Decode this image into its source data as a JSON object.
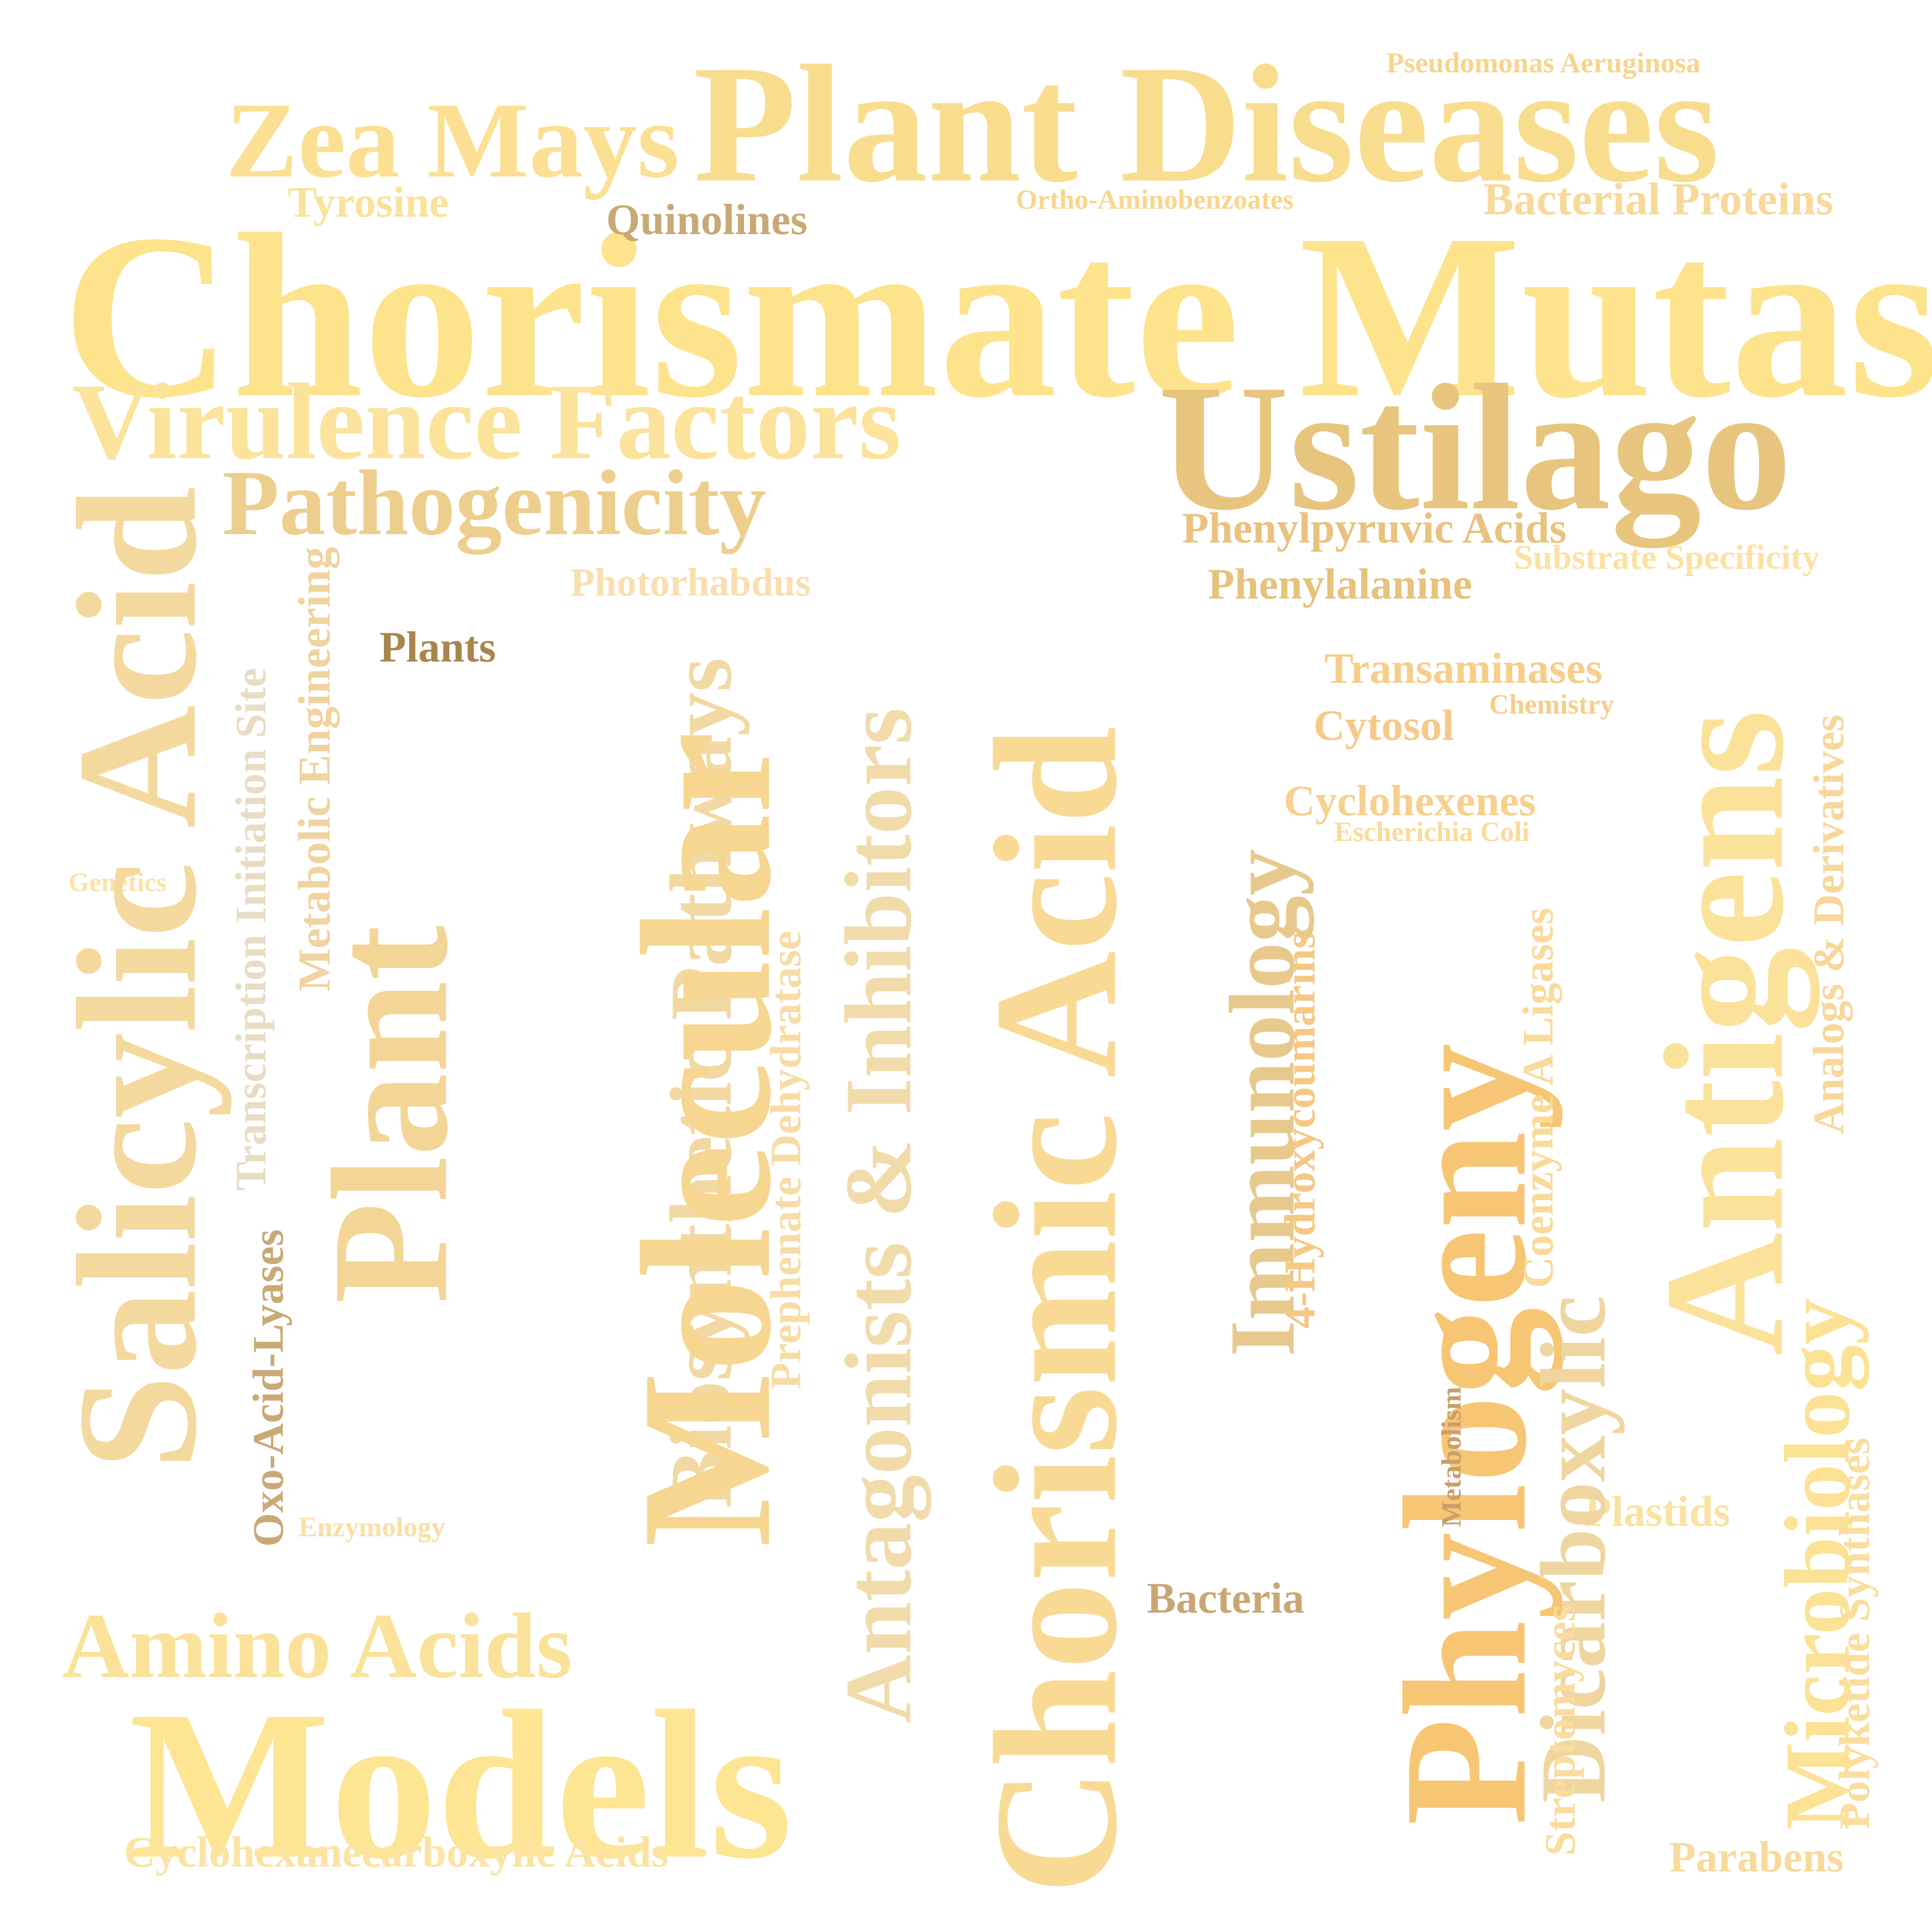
{
  "words": [
    {
      "id": "chorismate-mutase",
      "text": "Chorismate Mutase",
      "color": "#FDE38C"
    },
    {
      "id": "plant-diseases",
      "text": "Plant Diseases",
      "color": "#F9DD8E"
    },
    {
      "id": "zea-mays",
      "text": "Zea Mays",
      "color": "#FBE094"
    },
    {
      "id": "pseudomonas-aeruginosa",
      "text": "Pseudomonas Aeruginosa",
      "color": "#F6D58C"
    },
    {
      "id": "tyrosine",
      "text": "Tyrosine",
      "color": "#FBE29A"
    },
    {
      "id": "quinolines",
      "text": "Quinolines",
      "color": "#C8A975"
    },
    {
      "id": "ortho-aminobenzoates",
      "text": "Ortho-Aminobenzoates",
      "color": "#F7D68E"
    },
    {
      "id": "bacterial-proteins",
      "text": "Bacterial Proteins",
      "color": "#F7D99A"
    },
    {
      "id": "virulence-factors",
      "text": "Virulence Factors",
      "color": "#FBE39C"
    },
    {
      "id": "ustilago",
      "text": "Ustilago",
      "color": "#E8C57E"
    },
    {
      "id": "pathogenicity",
      "text": "Pathogenicity",
      "color": "#EDCE8D"
    },
    {
      "id": "phenylpyruvic-acids",
      "text": "Phenylpyruvic Acids",
      "color": "#E8C27E"
    },
    {
      "id": "substrate-specificity",
      "text": "Substrate Specificity",
      "color": "#FBE2A2"
    },
    {
      "id": "photorhabdus",
      "text": "Photorhabdus",
      "color": "#F9DFB0"
    },
    {
      "id": "phenylalanine",
      "text": "Phenylalanine",
      "color": "#E6C27C"
    },
    {
      "id": "plants",
      "text": "Plants",
      "color": "#A9854D"
    },
    {
      "id": "transaminases",
      "text": "Transaminases",
      "color": "#F6CE8A"
    },
    {
      "id": "chemistry",
      "text": "Chemistry",
      "color": "#F6CD8C"
    },
    {
      "id": "cytosol",
      "text": "Cytosol",
      "color": "#F6C98A"
    },
    {
      "id": "cyclohexenes",
      "text": "Cyclohexenes",
      "color": "#F7D08E"
    },
    {
      "id": "escherichia-coli",
      "text": "Escherichia Coli",
      "color": "#F9DB9C"
    },
    {
      "id": "genetics",
      "text": "Genetics",
      "color": "#FBE3A6"
    },
    {
      "id": "salicylic-acid",
      "text": "Salicylic Acid",
      "color": "#F4D99E"
    },
    {
      "id": "metabolic-engineering",
      "text": "Metabolic Engineering",
      "color": "#F0D3A0"
    },
    {
      "id": "transcription-initiation-site",
      "text": "Transcription Initiation Site",
      "color": "#E9DCC4"
    },
    {
      "id": "plant",
      "text": "Plant",
      "color": "#F3D596"
    },
    {
      "id": "biosynthetic-pathways",
      "text": "Biosynthetic Pathways",
      "color": "#F2D8A2"
    },
    {
      "id": "molecular",
      "text": "Molecular",
      "color": "#F6D690"
    },
    {
      "id": "antagonists-inhibitors",
      "text": "Antagonists & Inhibitors",
      "color": "#F1DBAA"
    },
    {
      "id": "chorismic-acid",
      "text": "Chorismic Acid",
      "color": "#F9DA95"
    },
    {
      "id": "immunology",
      "text": "Immunology",
      "color": "#E8C98D"
    },
    {
      "id": "hydroxycoumarins",
      "text": "4-Hydroxycoumarins",
      "color": "#F5C884"
    },
    {
      "id": "phylogeny",
      "text": "Phylogeny",
      "color": "#F6C674"
    },
    {
      "id": "coenzyme-a-ligases",
      "text": "Coenzyme A Ligases",
      "color": "#F9DA9A"
    },
    {
      "id": "antigens",
      "text": "Antigens",
      "color": "#FBE29A"
    },
    {
      "id": "analogs-derivatives",
      "text": "Analogs & Derivatives",
      "color": "#F7D79A"
    },
    {
      "id": "prephenate-dehydratase",
      "text": "Prephenate Dehydratase",
      "color": "#F8DCA6"
    },
    {
      "id": "oxo-acid-lyases",
      "text": "Oxo-Acid-Lyases",
      "color": "#C9A975"
    },
    {
      "id": "enzymology",
      "text": "Enzymology",
      "color": "#F9DFA6"
    },
    {
      "id": "metabolism",
      "text": "Metabolism",
      "color": "#C89E6A"
    },
    {
      "id": "dicarboxylic",
      "text": "Dicarboxylic",
      "color": "#EFD6A0"
    },
    {
      "id": "microbiology",
      "text": "Microbiology",
      "color": "#FBE294"
    },
    {
      "id": "plastids",
      "text": "Plastids",
      "color": "#FAE2A0"
    },
    {
      "id": "polyketide-synthases",
      "text": "Polyketide Synthases",
      "color": "#F9DEA0"
    },
    {
      "id": "bacteria",
      "text": "Bacteria",
      "color": "#C9A774"
    },
    {
      "id": "amino-acids",
      "text": "Amino Acids",
      "color": "#FBE29A"
    },
    {
      "id": "models",
      "text": "Models",
      "color": "#FDE594"
    },
    {
      "id": "cyclohexanecarboxylic-acids",
      "text": "Cyclohexanecarboxylic Acids",
      "color": "#FBE3A4"
    },
    {
      "id": "streptomyces",
      "text": "Streptomyces",
      "color": "#F9DC9E"
    },
    {
      "id": "parabens",
      "text": "Parabens",
      "color": "#F8DB9C"
    }
  ]
}
